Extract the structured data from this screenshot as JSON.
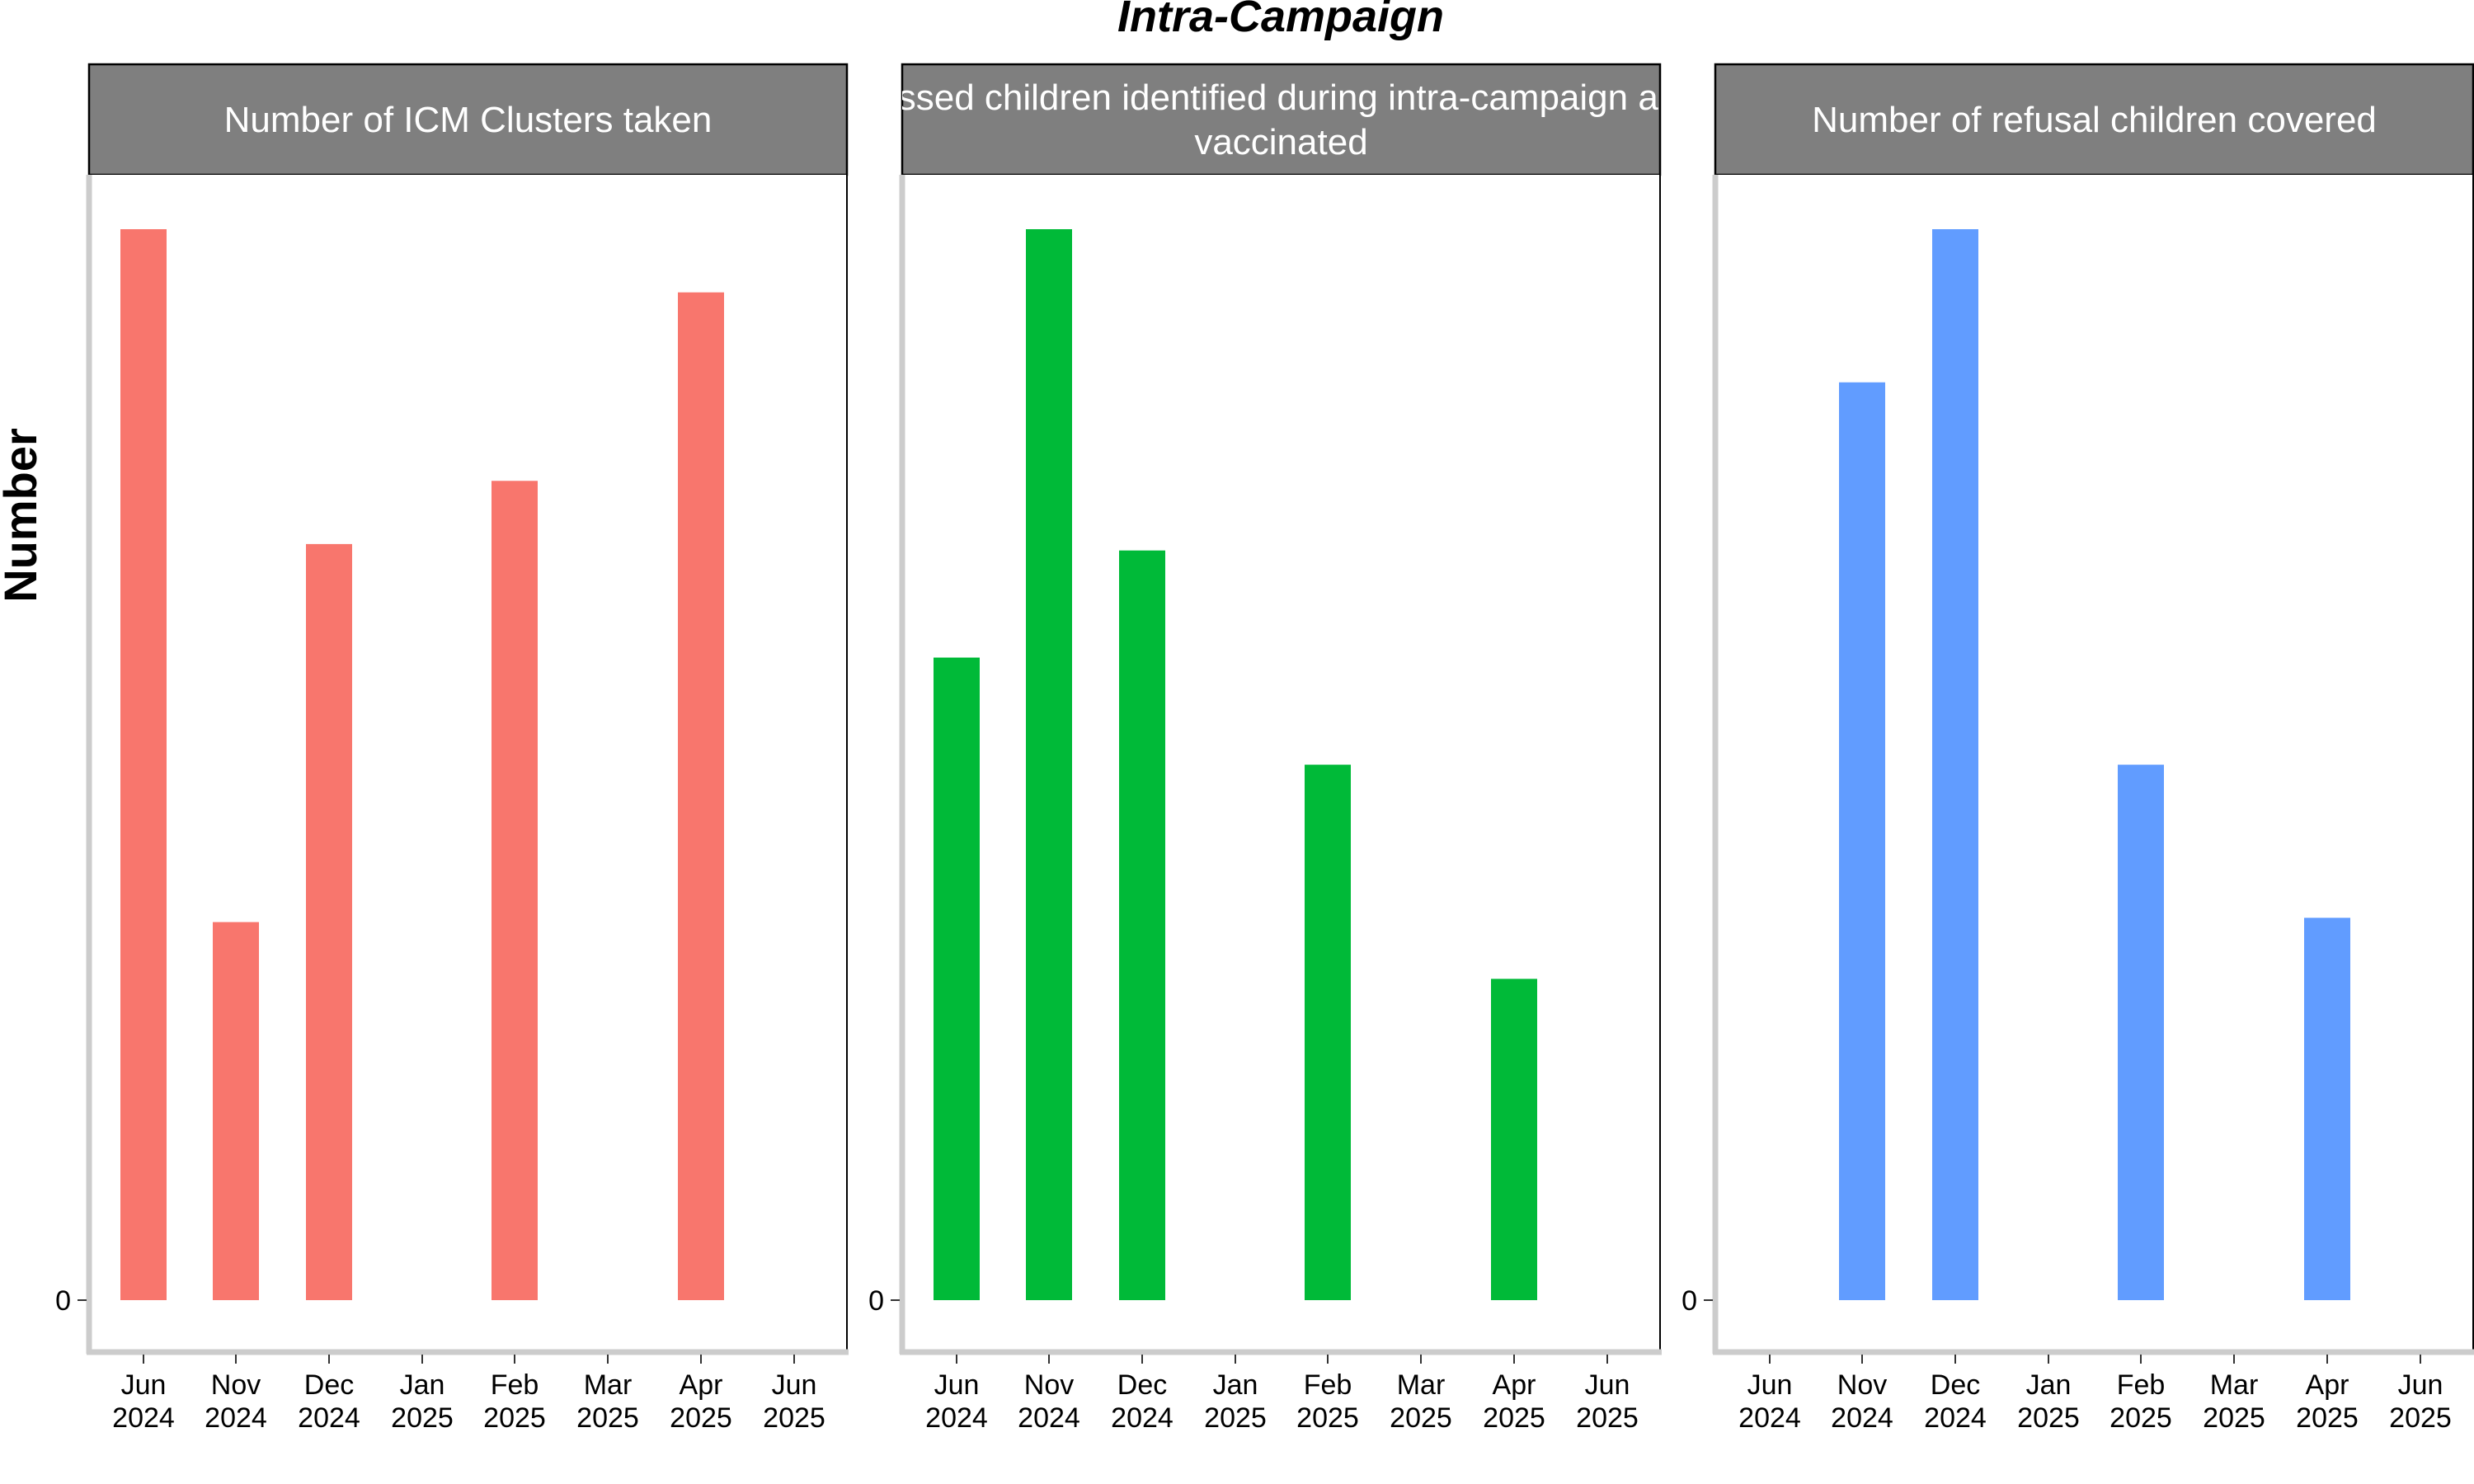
{
  "chart_data": {
    "type": "bar",
    "title": "Intra-Campaign",
    "ylabel": "Number",
    "y_ticks": [
      "0"
    ],
    "x_ticks": [
      {
        "month": "Jun",
        "year": "2024"
      },
      {
        "month": "Nov",
        "year": "2024"
      },
      {
        "month": "Dec",
        "year": "2024"
      },
      {
        "month": "Jan",
        "year": "2025"
      },
      {
        "month": "Feb",
        "year": "2025"
      },
      {
        "month": "Mar",
        "year": "2025"
      },
      {
        "month": "Apr",
        "year": "2025"
      },
      {
        "month": "Jun",
        "year": "2025"
      }
    ],
    "categories": [
      "Jun 2024",
      "Nov 2024",
      "Dec 2024",
      "Jan 2025",
      "Feb 2025",
      "Mar 2025",
      "Apr 2025",
      "Jun 2025"
    ],
    "panels": [
      {
        "strip_lines": [
          "Number of ICM Clusters taken"
        ],
        "color": "#F8766D",
        "values": [
          1.0,
          0.353,
          0.706,
          0,
          0.765,
          0,
          0.941,
          0
        ]
      },
      {
        "strip_lines": [
          "Number of missed children identified during intra-campaign and vaccinated",
          "vaccinated"
        ],
        "color": "#00BA38",
        "values": [
          0.6,
          1.0,
          0.7,
          0,
          0.5,
          0,
          0.3,
          0
        ]
      },
      {
        "strip_lines": [
          "Number of refusal children covered"
        ],
        "color": "#619CFF",
        "values": [
          0,
          0.857,
          1.0,
          0,
          0.5,
          0,
          0.357,
          0
        ]
      }
    ]
  }
}
